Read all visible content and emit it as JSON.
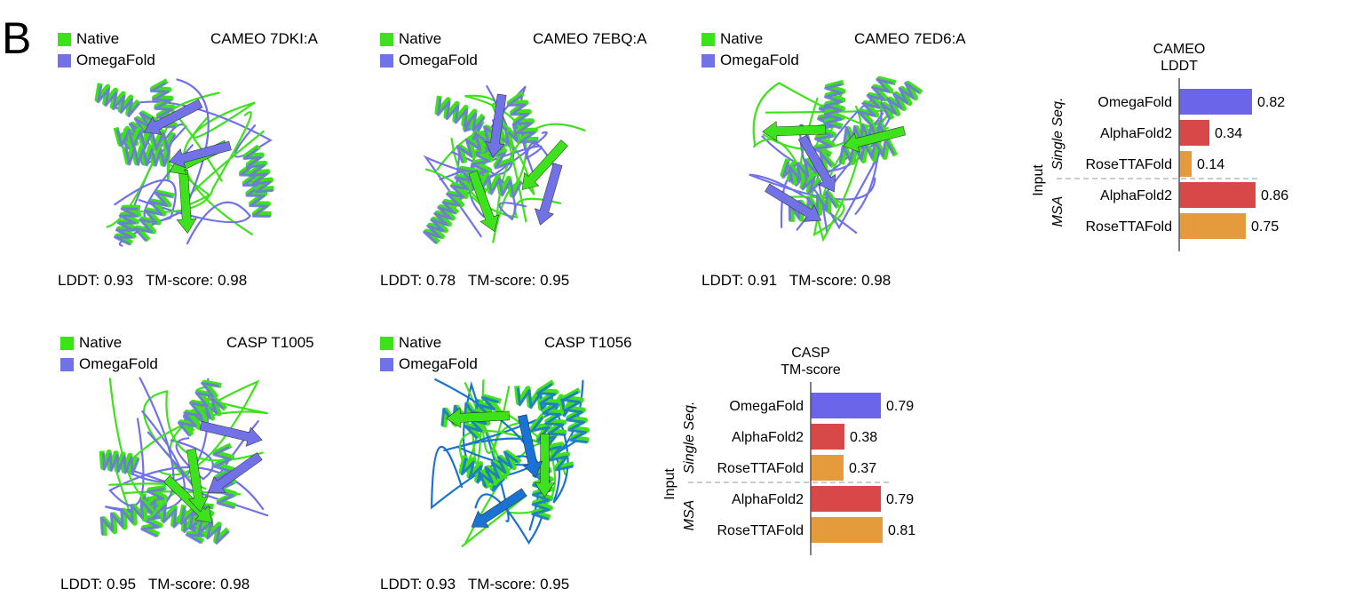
{
  "panel_label": "B",
  "legend": {
    "native": {
      "label": "Native",
      "color": "#3ee21c"
    },
    "omegafold": {
      "label": "OmegaFold",
      "color": "#7072e6"
    }
  },
  "structures": [
    {
      "title": "CAMEO 7DKI:A",
      "metrics": "LDDT: 0.93   TM-score: 0.98"
    },
    {
      "title": "CAMEO 7EBQ:A",
      "metrics": "LDDT: 0.78   TM-score: 0.95"
    },
    {
      "title": "CAMEO 7ED6:A",
      "metrics": "LDDT: 0.91   TM-score: 0.98"
    },
    {
      "title": "CASP T1005",
      "metrics": "LDDT: 0.95   TM-score: 0.98"
    },
    {
      "title": "CASP T1056",
      "metrics": "LDDT: 0.93   TM-score: 0.95"
    }
  ],
  "chart_data": [
    {
      "type": "bar",
      "orientation": "horizontal",
      "title": "CAMEO\nLDDT",
      "title_lines": [
        "CAMEO",
        "LDDT"
      ],
      "input_label": "Input",
      "groups": [
        {
          "label": "Single Seq.",
          "categories": [
            "OmegaFold",
            "AlphaFold2",
            "RoseTTAFold"
          ],
          "values": [
            0.82,
            0.34,
            0.14
          ],
          "colors": [
            "#6b65ea",
            "#d84848",
            "#e59a3c"
          ]
        },
        {
          "label": "MSA",
          "categories": [
            "AlphaFold2",
            "RoseTTAFold"
          ],
          "values": [
            0.86,
            0.75
          ],
          "colors": [
            "#d84848",
            "#e59a3c"
          ]
        }
      ],
      "xlim": [
        0,
        1
      ]
    },
    {
      "type": "bar",
      "orientation": "horizontal",
      "title": "CASP\nTM-score",
      "title_lines": [
        "CASP",
        "TM-score"
      ],
      "input_label": "Input",
      "groups": [
        {
          "label": "Single Seq.",
          "categories": [
            "OmegaFold",
            "AlphaFold2",
            "RoseTTAFold"
          ],
          "values": [
            0.79,
            0.38,
            0.37
          ],
          "colors": [
            "#6b65ea",
            "#d84848",
            "#e59a3c"
          ]
        },
        {
          "label": "MSA",
          "categories": [
            "AlphaFold2",
            "RoseTTAFold"
          ],
          "values": [
            0.79,
            0.81
          ],
          "colors": [
            "#d84848",
            "#e59a3c"
          ]
        }
      ],
      "xlim": [
        0,
        1
      ]
    }
  ]
}
